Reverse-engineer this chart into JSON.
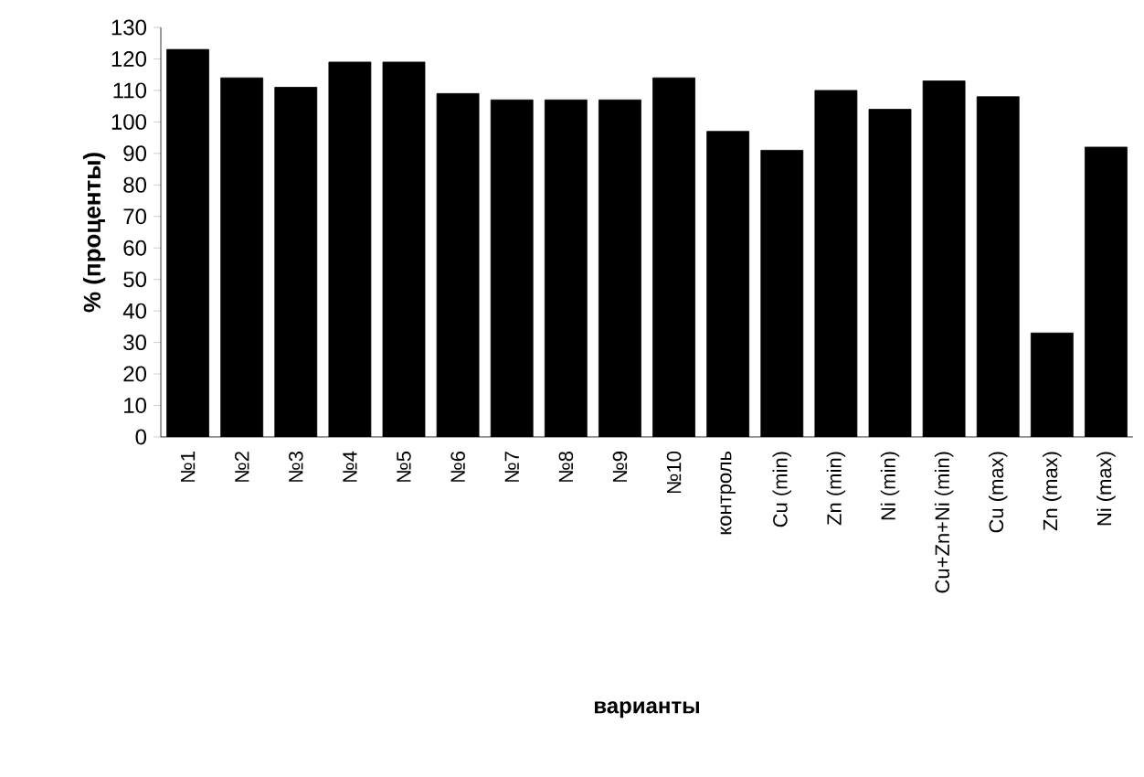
{
  "chart_data": {
    "type": "bar",
    "xlabel": "варианты",
    "ylabel": "% (проценты)",
    "categories": [
      "№1",
      "№2",
      "№3",
      "№4",
      "№5",
      "№6",
      "№7",
      "№8",
      "№9",
      "№10",
      "контроль",
      "Cu (min)",
      "Zn (min)",
      "Ni (min)",
      "Cu+Zn+Ni (min)",
      "Cu (max)",
      "Zn (max)",
      "Ni (max)"
    ],
    "values": [
      123,
      114,
      111,
      119,
      119,
      109,
      107,
      107,
      107,
      114,
      97,
      91,
      110,
      104,
      113,
      108,
      33,
      92
    ],
    "color": "#000000",
    "ylim": [
      0,
      130
    ],
    "yticks": [
      0,
      10,
      20,
      30,
      40,
      50,
      60,
      70,
      80,
      90,
      100,
      110,
      120,
      130
    ],
    "grid": false
  }
}
